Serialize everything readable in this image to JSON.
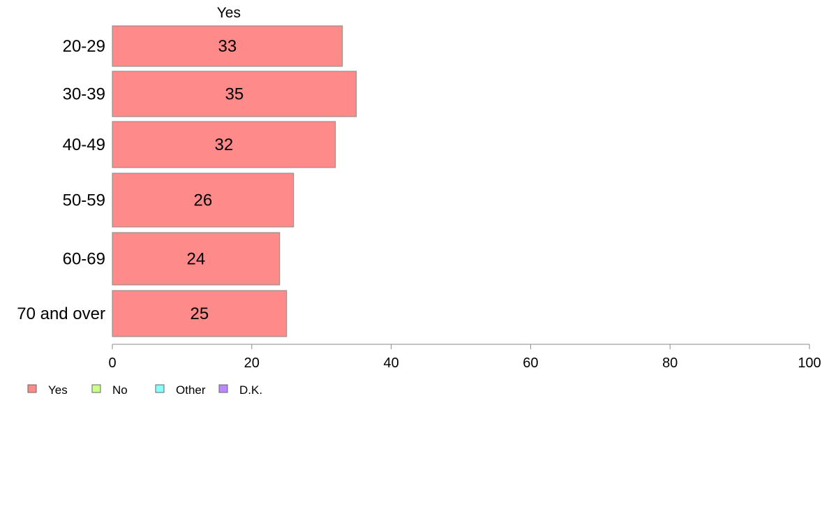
{
  "chart_data": {
    "type": "bar",
    "orientation": "horizontal",
    "title": "Yes",
    "categories": [
      "20-29",
      "30-39",
      "40-49",
      "50-59",
      "60-69",
      "70 and over"
    ],
    "series": [
      {
        "name": "Yes",
        "values": [
          33,
          35,
          32,
          26,
          24,
          25
        ],
        "color": "#ff8a8a"
      }
    ],
    "data_labels": [
      "33",
      "35",
      "32",
      "26",
      "24",
      "25"
    ],
    "xlim": [
      0,
      100
    ],
    "xticks": [
      0,
      20,
      40,
      60,
      80,
      100
    ],
    "grid": false,
    "legend": {
      "placement": "bottom-left",
      "items": [
        {
          "label": "Yes",
          "color": "#ff8a8a"
        },
        {
          "label": "No",
          "color": "#ccff88"
        },
        {
          "label": "Other",
          "color": "#88ffff"
        },
        {
          "label": "D.K.",
          "color": "#bb88ff"
        }
      ]
    }
  }
}
